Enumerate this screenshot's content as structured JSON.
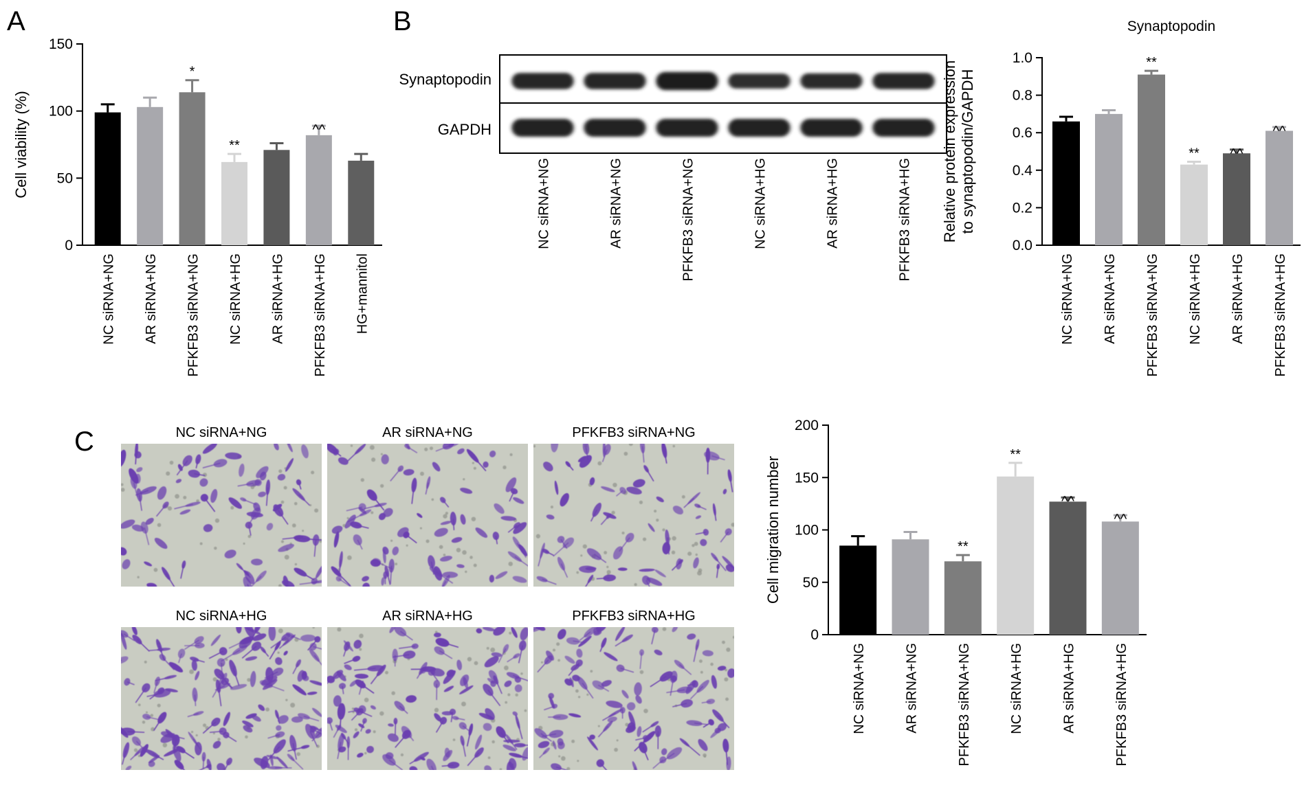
{
  "panels": {
    "A": "A",
    "B": "B",
    "C": "C"
  },
  "blot": {
    "bands": [
      "Synaptopodin",
      "GAPDH"
    ],
    "lanes": [
      "NC siRNA+NG",
      "AR siRNA+NG",
      "PFKFB3 siRNA+NG",
      "NC siRNA+HG",
      "AR siRNA+HG",
      "PFKFB3 siRNA+HG"
    ],
    "band_intensity": {
      "Synaptopodin": [
        0.7,
        0.7,
        0.9,
        0.55,
        0.6,
        0.7
      ],
      "GAPDH": [
        0.85,
        0.85,
        0.85,
        0.85,
        0.85,
        0.85
      ]
    }
  },
  "micrographs": {
    "labels": [
      "NC siRNA+NG",
      "AR siRNA+NG",
      "PFKFB3 siRNA+NG",
      "NC siRNA+HG",
      "AR siRNA+HG",
      "PFKFB3 siRNA+HG"
    ],
    "colors": {
      "background": "#c9ccc2",
      "cell": "#6a3fb0"
    },
    "cell_density": [
      0.35,
      0.35,
      0.25,
      0.75,
      0.65,
      0.5
    ]
  },
  "chart_data": [
    {
      "id": "A",
      "type": "bar",
      "title": "",
      "xlabel": "",
      "ylabel": "Cell viability (%)",
      "ylim": [
        0,
        150
      ],
      "yticks": [
        0,
        50,
        100,
        150
      ],
      "categories": [
        "NC siRNA+NG",
        "AR siRNA+NG",
        "PFKFB3 siRNA+NG",
        "NC siRNA+HG",
        "AR siRNA+HG",
        "PFKFB3 siRNA+HG",
        "HG+mannitol"
      ],
      "values": [
        99,
        103,
        114,
        62,
        71,
        82,
        63
      ],
      "errors": [
        6,
        7,
        9,
        6,
        5,
        7,
        5
      ],
      "annotations": [
        "",
        "",
        "*",
        "**",
        "",
        "^^",
        ""
      ],
      "colors": [
        "#000000",
        "#a8a8ad",
        "#7d7d7d",
        "#d4d4d4",
        "#5a5a5a",
        "#a8a8ad",
        "#5f5f5f"
      ]
    },
    {
      "id": "B",
      "type": "bar",
      "title": "Synaptopodin",
      "xlabel": "",
      "ylabel": "Relative protein expression to synaptopodin/GAPDH",
      "ylabel_lines": [
        "Relative protein expression",
        "to synaptopodin/GAPDH"
      ],
      "ylim": [
        0,
        1.0
      ],
      "yticks": [
        "0.0",
        "0.2",
        "0.4",
        "0.6",
        "0.8",
        "1.0"
      ],
      "categories": [
        "NC siRNA+NG",
        "AR siRNA+NG",
        "PFKFB3 siRNA+NG",
        "NC siRNA+HG",
        "AR siRNA+HG",
        "PFKFB3 siRNA+HG"
      ],
      "values": [
        0.66,
        0.7,
        0.91,
        0.43,
        0.49,
        0.61
      ],
      "errors": [
        0.025,
        0.02,
        0.02,
        0.015,
        0.02,
        0.02
      ],
      "annotations": [
        "",
        "",
        "**",
        "**",
        "^^",
        "^^"
      ],
      "colors": [
        "#000000",
        "#a8a8ad",
        "#7d7d7d",
        "#d4d4d4",
        "#5a5a5a",
        "#a8a8ad"
      ]
    },
    {
      "id": "C",
      "type": "bar",
      "title": "",
      "xlabel": "",
      "ylabel": "Cell migration number",
      "ylim": [
        0,
        200
      ],
      "yticks": [
        0,
        50,
        100,
        150,
        200
      ],
      "categories": [
        "NC siRNA+NG",
        "AR siRNA+NG",
        "PFKFB3 siRNA+NG",
        "NC siRNA+HG",
        "AR siRNA+HG",
        "PFKFB3 siRNA+HG"
      ],
      "values": [
        85,
        91,
        70,
        151,
        127,
        108
      ],
      "errors": [
        9,
        7,
        6,
        13,
        4,
        6
      ],
      "annotations": [
        "",
        "",
        "**",
        "**",
        "^^",
        "^^"
      ],
      "colors": [
        "#000000",
        "#a8a8ad",
        "#7d7d7d",
        "#d4d4d4",
        "#5a5a5a",
        "#a8a8ad"
      ]
    }
  ]
}
